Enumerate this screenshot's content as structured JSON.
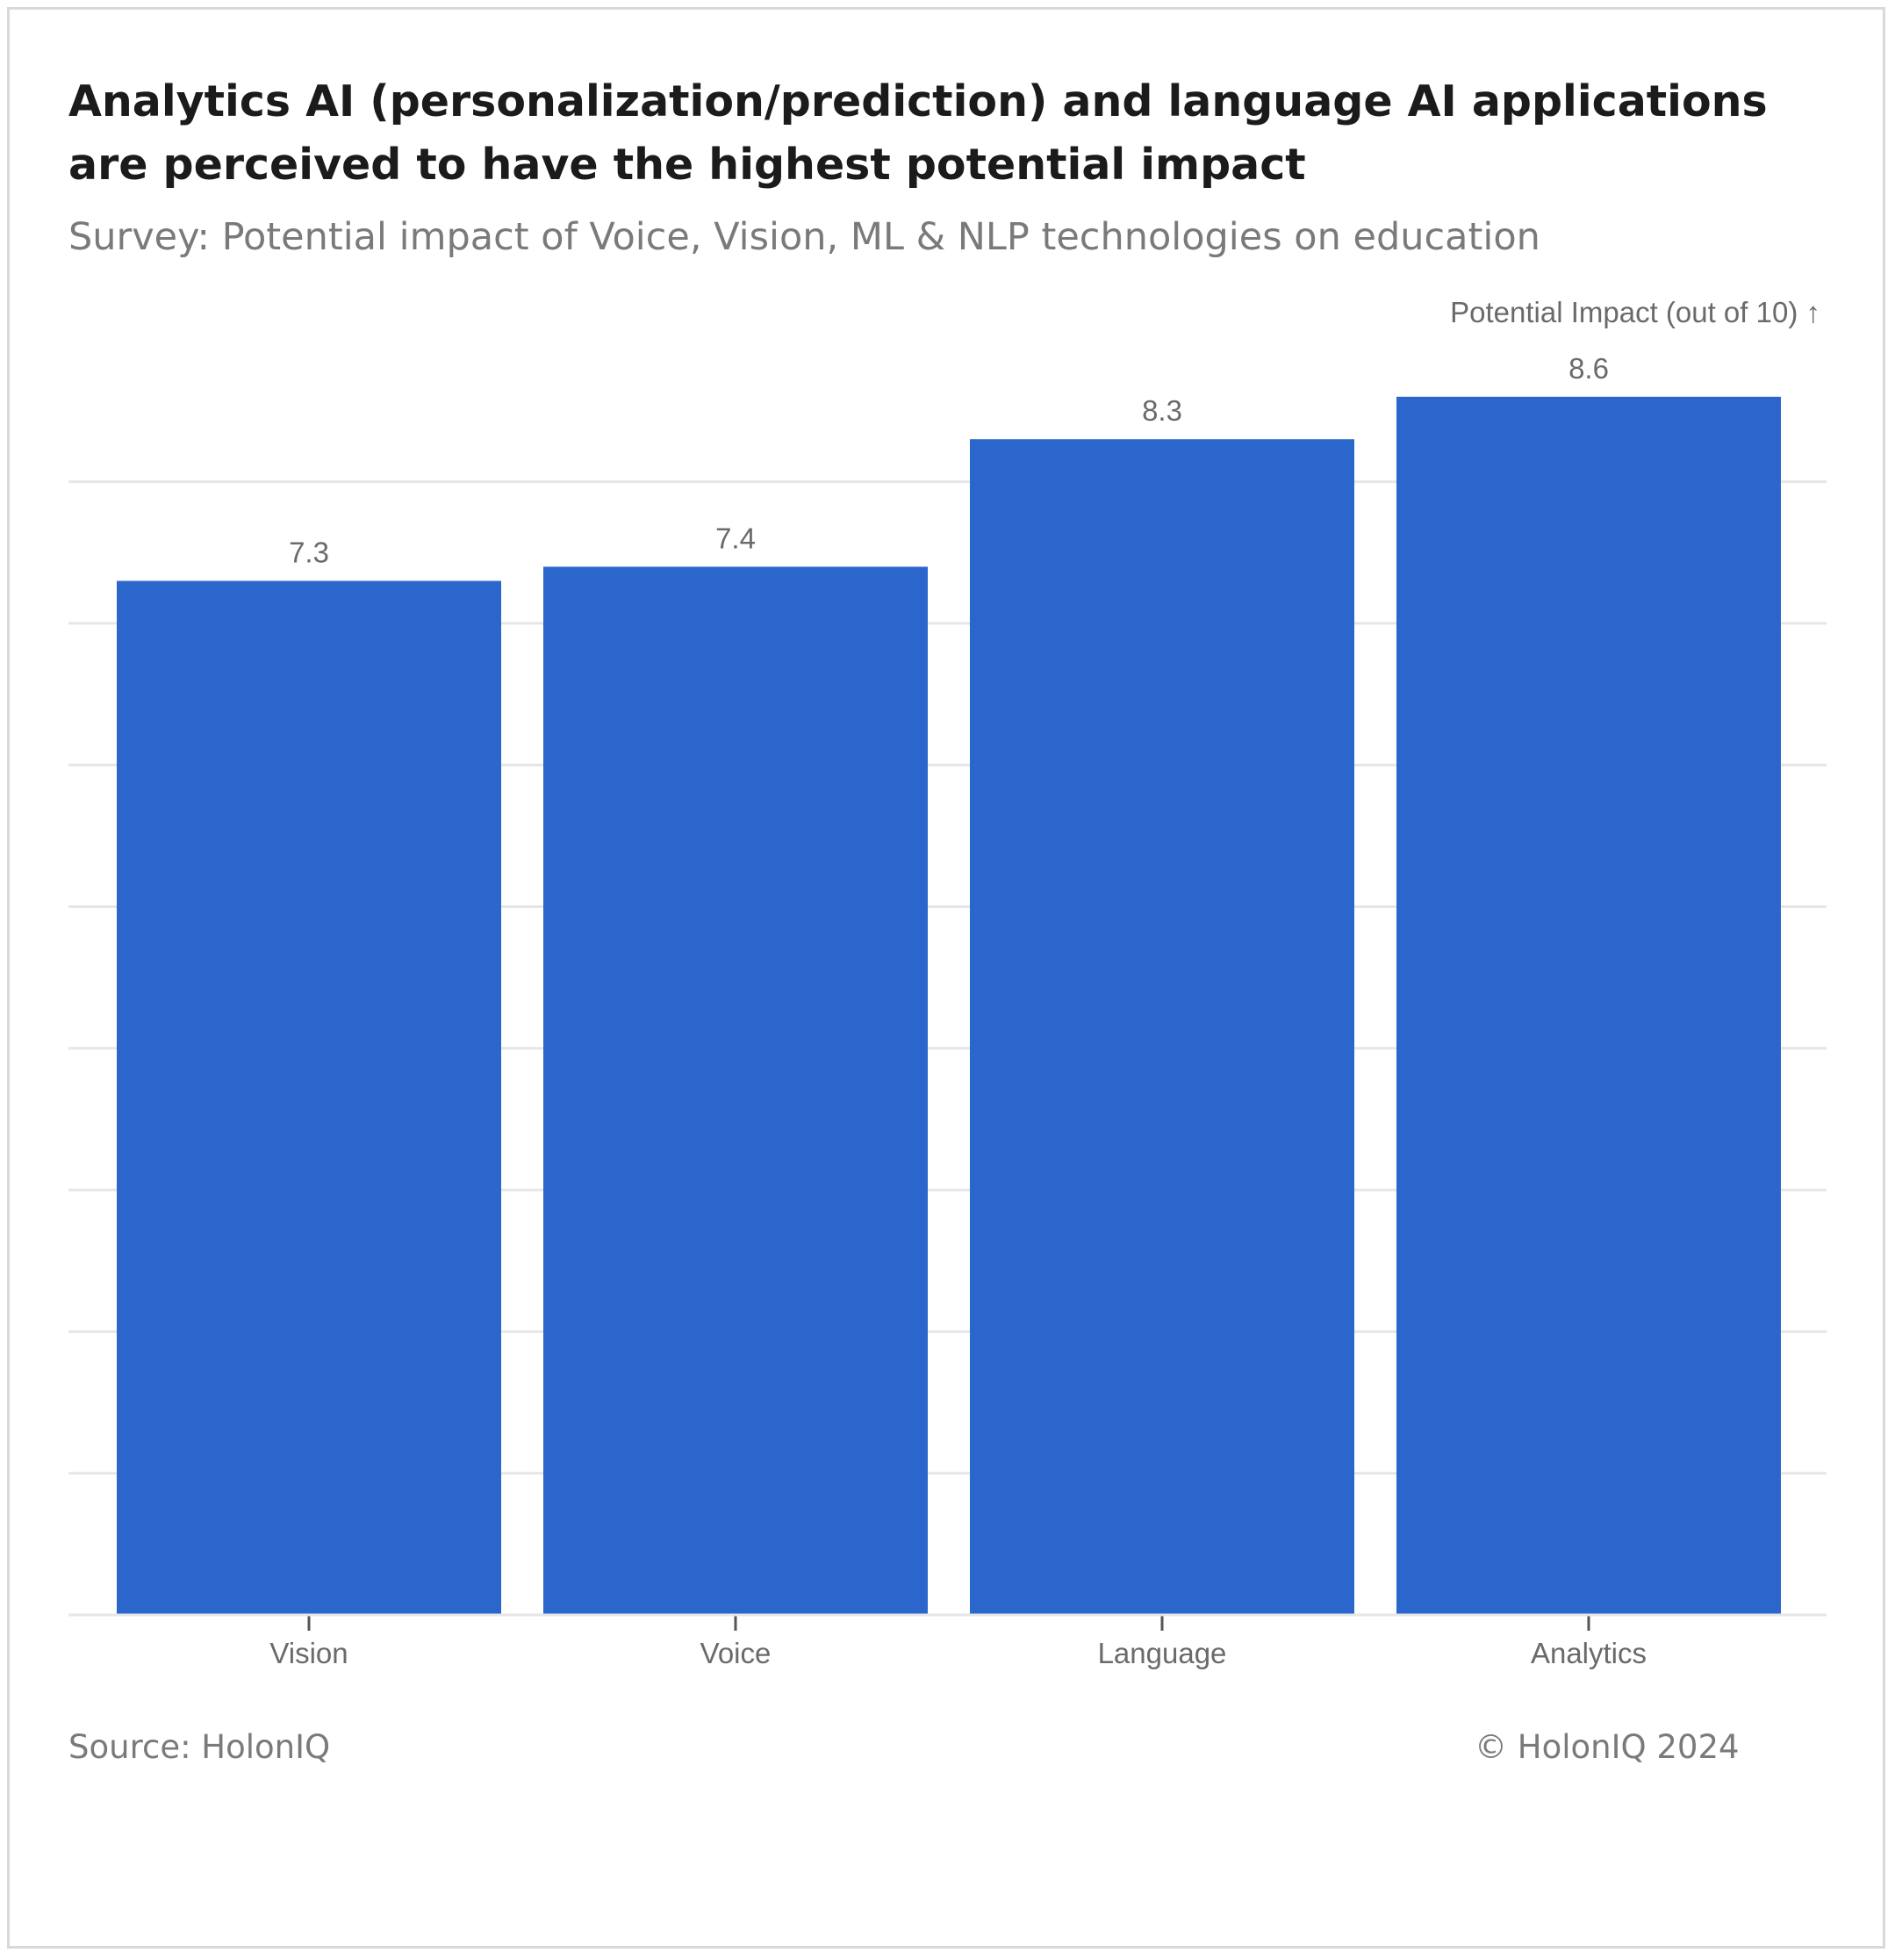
{
  "chart_data": {
    "type": "bar",
    "title": "Analytics AI (personalization/prediction) and language AI applications are perceived to have the highest potential impact",
    "subtitle": "Survey: Potential impact of Voice, Vision, ML & NLP technologies on education",
    "ylabel": "Potential Impact (out of 10) ↑",
    "xlabel": "",
    "categories": [
      "Vision",
      "Voice",
      "Language",
      "Analytics"
    ],
    "values": [
      7.3,
      7.4,
      8.3,
      8.6
    ],
    "value_labels": [
      "7.3",
      "7.4",
      "8.3",
      "8.6"
    ],
    "ylim": [
      0,
      8
    ],
    "grid": true,
    "bar_color": "#2b66cc",
    "grid_color": "#e6e6e6"
  },
  "footer": {
    "source": "Source: HolonIQ",
    "copyright": "© HolonIQ 2024"
  }
}
